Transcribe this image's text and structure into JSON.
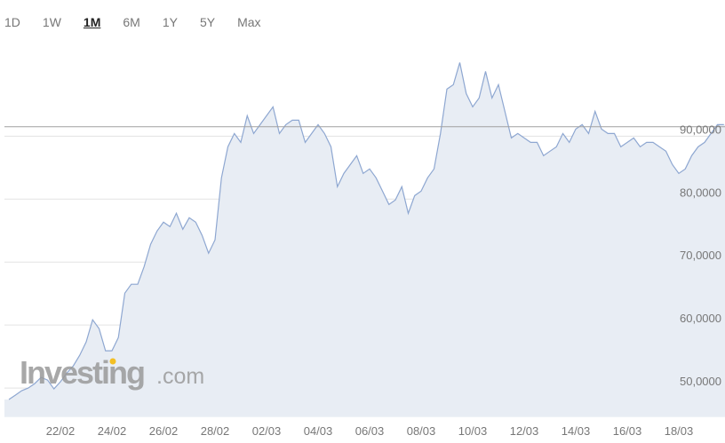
{
  "range_tabs": {
    "items": [
      "1D",
      "1W",
      "1M",
      "6M",
      "1Y",
      "5Y",
      "Max"
    ],
    "selected": "1M"
  },
  "chart_data": {
    "type": "area",
    "categories": [
      null,
      null,
      null,
      null,
      null,
      null,
      null,
      null,
      "22/02",
      null,
      null,
      null,
      null,
      null,
      null,
      null,
      "24/02",
      null,
      null,
      null,
      null,
      null,
      null,
      null,
      "26/02",
      null,
      null,
      null,
      null,
      null,
      null,
      null,
      "28/02",
      null,
      null,
      null,
      null,
      null,
      null,
      null,
      "02/03",
      null,
      null,
      null,
      null,
      null,
      null,
      null,
      "04/03",
      null,
      null,
      null,
      null,
      null,
      null,
      null,
      "06/03",
      null,
      null,
      null,
      null,
      null,
      null,
      null,
      "08/03",
      null,
      null,
      null,
      null,
      null,
      null,
      null,
      "10/03",
      null,
      null,
      null,
      null,
      null,
      null,
      null,
      "12/03",
      null,
      null,
      null,
      null,
      null,
      null,
      null,
      "14/03",
      null,
      null,
      null,
      null,
      null,
      null,
      null,
      "16/03",
      null,
      null,
      null,
      null,
      null,
      null,
      null,
      "18/03",
      null,
      null,
      null,
      null,
      null,
      null,
      null
    ],
    "values": [
      48170,
      48870,
      49580,
      50000,
      50700,
      51690,
      51270,
      49860,
      50990,
      52390,
      53520,
      55210,
      57320,
      60840,
      59440,
      55910,
      55910,
      58030,
      65070,
      66480,
      66480,
      69300,
      72820,
      74930,
      76340,
      75630,
      77750,
      75210,
      77040,
      76340,
      74230,
      71410,
      73520,
      83380,
      88310,
      90420,
      89010,
      93240,
      90420,
      91830,
      93240,
      94650,
      90420,
      91830,
      92540,
      92540,
      89010,
      90420,
      91830,
      90420,
      88310,
      81970,
      84080,
      85490,
      86900,
      84080,
      84790,
      83380,
      81270,
      79150,
      79860,
      81970,
      77750,
      80560,
      81270,
      83380,
      84790,
      90420,
      97470,
      98170,
      101690,
      96760,
      94650,
      96060,
      100280,
      96060,
      98170,
      93940,
      89720,
      90420,
      89720,
      89010,
      89010,
      86900,
      87610,
      88310,
      90420,
      89010,
      91130,
      91830,
      90420,
      93940,
      91130,
      90420,
      90420,
      88310,
      89010,
      89720,
      88310,
      89010,
      89010,
      88310,
      87610,
      85490,
      84080,
      84790,
      86900,
      88310,
      89010,
      90420,
      91830,
      91830
    ],
    "color": "#8ea7d1",
    "fill": "#e8edf4",
    "ylim": [
      45400,
      102500
    ],
    "yticks": [
      {
        "value": 50000,
        "label": "50,0000"
      },
      {
        "value": 60000,
        "label": "60,0000"
      },
      {
        "value": 70000,
        "label": "70,0000"
      },
      {
        "value": 80000,
        "label": "80,0000"
      },
      {
        "value": 90000,
        "label": "90,0000"
      }
    ],
    "grid": true,
    "reference_line": 91500,
    "watermark": {
      "brand": "Investing",
      "suffix": ".com"
    }
  }
}
